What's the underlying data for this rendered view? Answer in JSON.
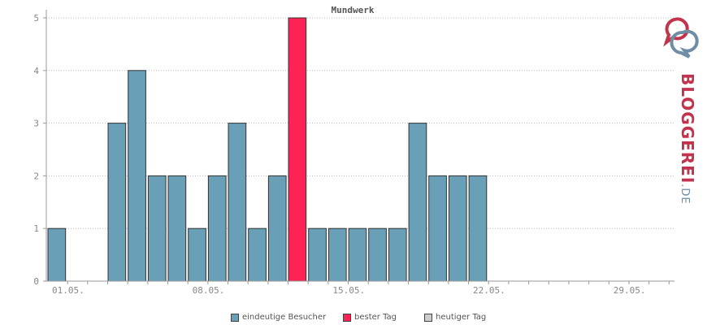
{
  "chart_data": {
    "type": "bar",
    "title": "Mundwerk",
    "x": [
      "01.05.",
      "02.05.",
      "03.05.",
      "04.05.",
      "05.05.",
      "06.05.",
      "07.05.",
      "08.05.",
      "09.05.",
      "10.05.",
      "11.05.",
      "12.05.",
      "13.05.",
      "14.05.",
      "15.05.",
      "16.05.",
      "17.05.",
      "18.05.",
      "19.05.",
      "20.05.",
      "21.05.",
      "22.05.",
      "23.05.",
      "24.05.",
      "25.05.",
      "26.05.",
      "27.05.",
      "28.05.",
      "29.05.",
      "30.05.",
      "31.05."
    ],
    "x_tick_labels": [
      "01.05.",
      "08.05.",
      "15.05.",
      "22.05.",
      "29.05."
    ],
    "series": [
      {
        "name": "eindeutige Besucher",
        "color": "#6a9fb8",
        "values": [
          1,
          0,
          0,
          3,
          4,
          2,
          2,
          1,
          2,
          3,
          1,
          2,
          5,
          1,
          1,
          1,
          1,
          1,
          3,
          2,
          2,
          2,
          0,
          0,
          0,
          0,
          0,
          0,
          0,
          0,
          0
        ]
      }
    ],
    "highlight": {
      "name": "bester Tag",
      "date": "13.05.",
      "color": "#ff2255"
    },
    "today": {
      "name": "heutiger Tag",
      "color": "#cccccc"
    },
    "ylim": [
      0,
      5
    ],
    "yticks": [
      0,
      1,
      2,
      3,
      4,
      5
    ],
    "grid": true,
    "legend_position": "bottom-center"
  },
  "logo": {
    "text": "BLOGGEREI",
    "tld": ".DE"
  }
}
